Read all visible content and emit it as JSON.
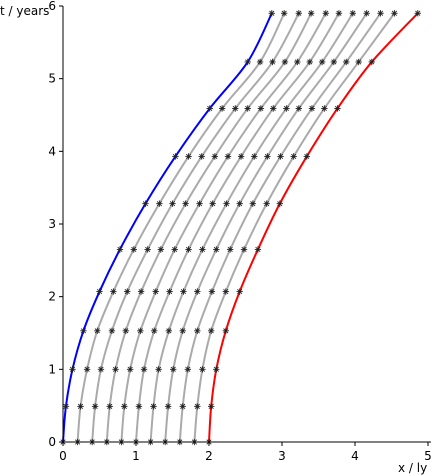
{
  "chart_data": {
    "type": "line",
    "title": "",
    "xlabel": "x / ly",
    "ylabel": "t / years",
    "xlim": [
      0,
      5
    ],
    "ylim": [
      0,
      6
    ],
    "xticks": [
      "0",
      "1",
      "2",
      "3",
      "4",
      "5"
    ],
    "yticks": [
      "0",
      "1",
      "2",
      "3",
      "4",
      "5",
      "6"
    ],
    "grid": false,
    "legend": "none",
    "marker": "*",
    "description_note": "",
    "series": [
      {
        "color": "#0000ff",
        "x": [
          0.0,
          0.04,
          0.13,
          0.28,
          0.5,
          0.78,
          1.13,
          1.54,
          2.01,
          2.53,
          2.86
        ],
        "y": [
          0.0,
          0.49,
          1.0,
          1.53,
          2.07,
          2.65,
          3.28,
          3.93,
          4.59,
          5.23,
          5.9
        ]
      },
      {
        "color": "#aaaaaa",
        "x": [
          0.2,
          0.24,
          0.33,
          0.47,
          0.69,
          0.97,
          1.32,
          1.72,
          2.18,
          2.7,
          3.03
        ],
        "y": [
          0.0,
          0.49,
          1.0,
          1.53,
          2.07,
          2.65,
          3.28,
          3.93,
          4.59,
          5.23,
          5.9
        ]
      },
      {
        "color": "#aaaaaa",
        "x": [
          0.4,
          0.44,
          0.52,
          0.67,
          0.88,
          1.16,
          1.5,
          1.9,
          2.36,
          2.87,
          3.23
        ],
        "y": [
          0.0,
          0.49,
          1.0,
          1.53,
          2.07,
          2.65,
          3.28,
          3.93,
          4.59,
          5.23,
          5.9
        ]
      },
      {
        "color": "#aaaaaa",
        "x": [
          0.6,
          0.64,
          0.72,
          0.86,
          1.07,
          1.34,
          1.68,
          2.08,
          2.53,
          3.04,
          3.4
        ],
        "y": [
          0.0,
          0.49,
          1.0,
          1.53,
          2.07,
          2.65,
          3.28,
          3.93,
          4.59,
          5.23,
          5.9
        ]
      },
      {
        "color": "#aaaaaa",
        "x": [
          0.8,
          0.84,
          0.92,
          1.06,
          1.27,
          1.53,
          1.87,
          2.26,
          2.71,
          3.21,
          3.6
        ],
        "y": [
          0.0,
          0.49,
          1.0,
          1.53,
          2.07,
          2.65,
          3.28,
          3.93,
          4.59,
          5.23,
          5.9
        ]
      },
      {
        "color": "#aaaaaa",
        "x": [
          1.0,
          1.04,
          1.11,
          1.25,
          1.46,
          1.72,
          2.05,
          2.44,
          2.88,
          3.38,
          3.78
        ],
        "y": [
          0.0,
          0.49,
          1.0,
          1.53,
          2.07,
          2.65,
          3.28,
          3.93,
          4.59,
          5.23,
          5.9
        ]
      },
      {
        "color": "#aaaaaa",
        "x": [
          1.2,
          1.24,
          1.31,
          1.45,
          1.65,
          1.91,
          2.24,
          2.62,
          3.06,
          3.55,
          3.97
        ],
        "y": [
          0.0,
          0.49,
          1.0,
          1.53,
          2.07,
          2.65,
          3.28,
          3.93,
          4.59,
          5.23,
          5.9
        ]
      },
      {
        "color": "#aaaaaa",
        "x": [
          1.4,
          1.44,
          1.51,
          1.64,
          1.84,
          2.1,
          2.42,
          2.8,
          3.23,
          3.71,
          4.16
        ],
        "y": [
          0.0,
          0.49,
          1.0,
          1.53,
          2.07,
          2.65,
          3.28,
          3.93,
          4.59,
          5.23,
          5.9
        ]
      },
      {
        "color": "#aaaaaa",
        "x": [
          1.6,
          1.64,
          1.71,
          1.84,
          2.04,
          2.29,
          2.6,
          2.98,
          3.41,
          3.88,
          4.35
        ],
        "y": [
          0.0,
          0.49,
          1.0,
          1.53,
          2.07,
          2.65,
          3.28,
          3.93,
          4.59,
          5.23,
          5.9
        ]
      },
      {
        "color": "#aaaaaa",
        "x": [
          1.8,
          1.84,
          1.91,
          2.03,
          2.23,
          2.48,
          2.79,
          3.16,
          3.58,
          4.05,
          4.54
        ],
        "y": [
          0.0,
          0.49,
          1.0,
          1.53,
          2.07,
          2.65,
          3.28,
          3.93,
          4.59,
          5.23,
          5.9
        ]
      },
      {
        "color": "#ff0000",
        "x": [
          2.0,
          2.03,
          2.1,
          2.23,
          2.42,
          2.67,
          2.97,
          3.34,
          3.76,
          4.23,
          4.86
        ],
        "y": [
          0.0,
          0.49,
          1.0,
          1.53,
          2.07,
          2.65,
          3.28,
          3.93,
          4.59,
          5.23,
          5.9
        ]
      }
    ]
  }
}
